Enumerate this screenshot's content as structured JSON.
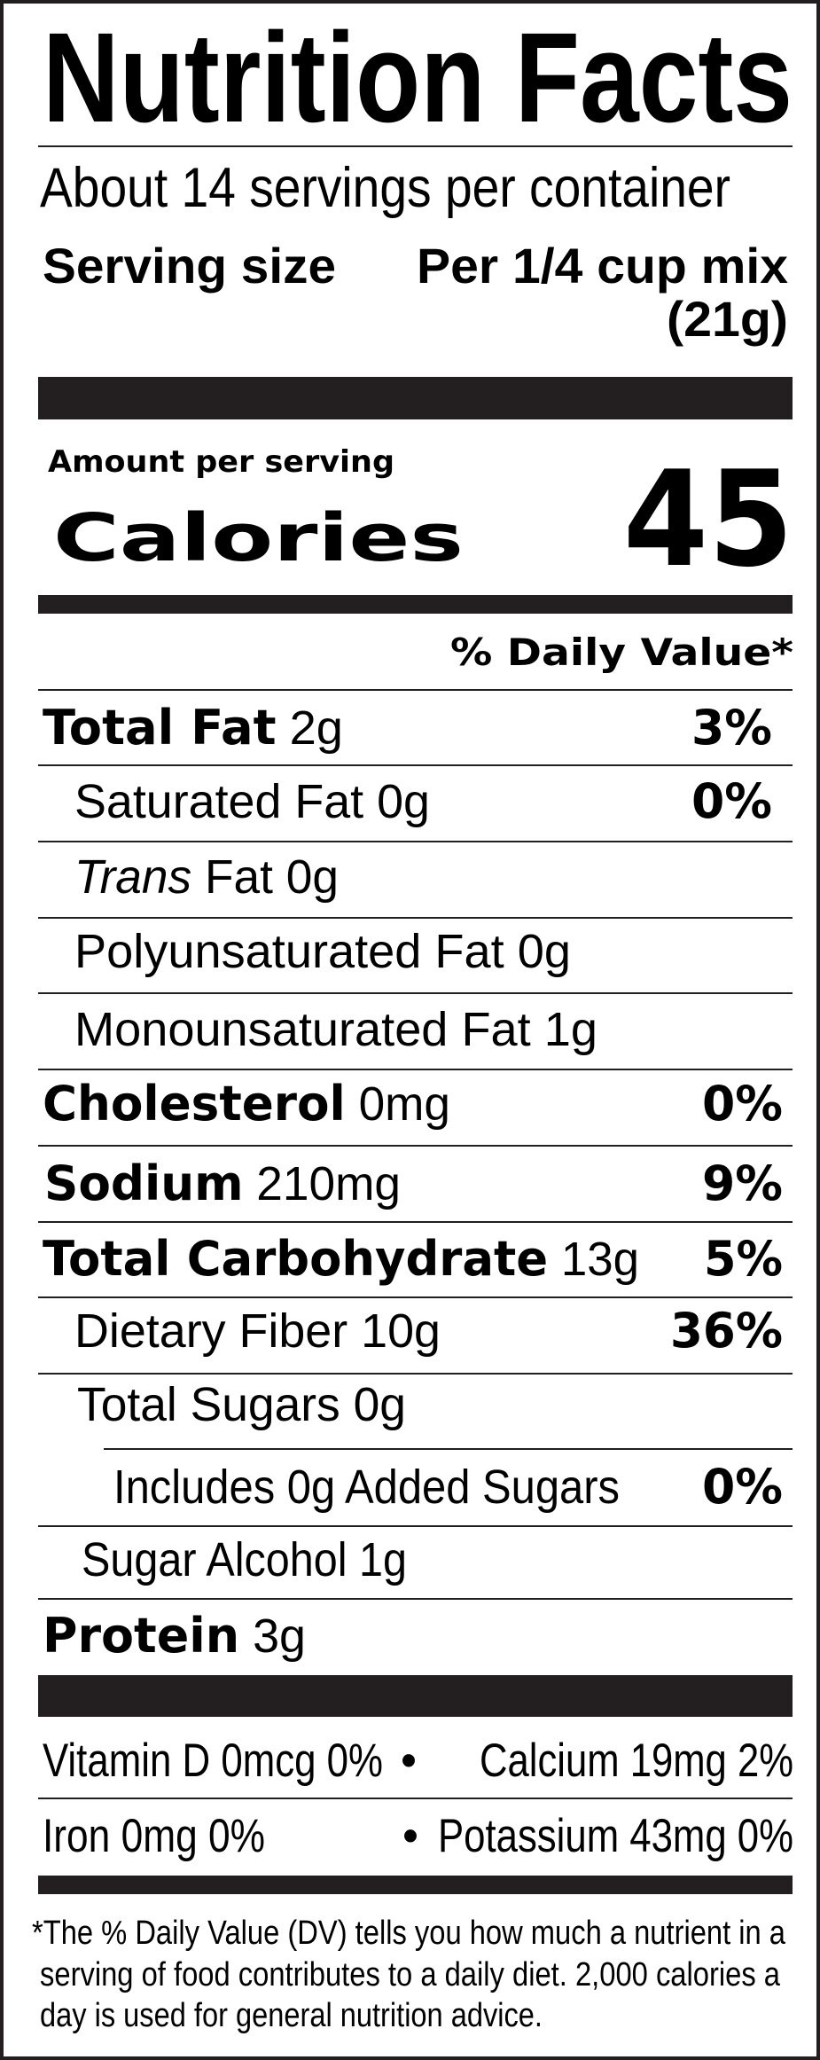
{
  "title": "Nutrition Facts",
  "servings_per_container": "About 14 servings per container",
  "serving_size": {
    "label": "Serving size",
    "value_line1": "Per 1/4 cup mix",
    "value_line2": "(21g)"
  },
  "amount_per_serving": "Amount per serving",
  "calories": {
    "label": "Calories",
    "value": "45"
  },
  "daily_value_header": "% Daily Value*",
  "nutrients": [
    {
      "name": "Total Fat",
      "amount": "2g",
      "dv": "3%"
    },
    {
      "name": "Saturated Fat",
      "amount": "0g",
      "dv": "0%"
    },
    {
      "name": "Trans",
      "name_suffix": "Fat",
      "amount": "0g"
    },
    {
      "name": "Polyunsaturated Fat",
      "amount": "0g"
    },
    {
      "name": "Monounsaturated Fat",
      "amount": "1g"
    },
    {
      "name": "Cholesterol",
      "amount": "0mg",
      "dv": "0%"
    },
    {
      "name": "Sodium",
      "amount": "210mg",
      "dv": "9%"
    },
    {
      "name": "Total Carbohydrate",
      "amount": "13g",
      "dv": "5%"
    },
    {
      "name": "Dietary Fiber",
      "amount": "10g",
      "dv": "36%"
    },
    {
      "name": "Total Sugars",
      "amount": "0g"
    },
    {
      "name": "Includes 0g Added Sugars",
      "dv": "0%"
    },
    {
      "name": "Sugar Alcohol",
      "amount": "1g"
    },
    {
      "name": "Protein",
      "amount": "3g"
    }
  ],
  "vitamins": [
    {
      "text": "Vitamin D 0mcg 0%"
    },
    {
      "text": "Calcium 19mg 2%"
    },
    {
      "text": "Iron 0mg 0%"
    },
    {
      "text": "Potassium 43mg 0%"
    }
  ],
  "bullet": "•",
  "footnote_lines": [
    "*The % Daily Value (DV) tells you how much a nutrient in a",
    "serving of food contributes to a daily diet. 2,000 calories a",
    "day is used for general nutrition advice."
  ],
  "colors": {
    "ink": "#231f20",
    "background": "#ffffff"
  }
}
